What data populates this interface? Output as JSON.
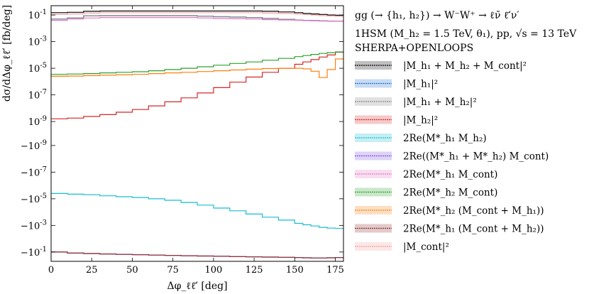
{
  "chart_data": {
    "type": "line",
    "title_lines": [
      "gg (→ {h₁, h₂}) → W⁻W⁺ → ℓν̄ ℓ̄′ν′",
      "1HSM (M_h₂ = 1.5 TeV, θ₁), pp, √s = 13 TeV",
      "SHERPA+OPENLOOPS"
    ],
    "xlabel": "Δφ_ℓℓ̄′ [deg]",
    "ylabel": "dσ/dΔφ_ℓℓ̄′ [fb/deg]",
    "xlim": [
      0,
      180
    ],
    "x_ticks": [
      "0",
      "25",
      "50",
      "75",
      "100",
      "125",
      "150",
      "175"
    ],
    "y_scale": "symlog",
    "ylim": [
      -1,
      1
    ],
    "y_ticks": [
      "10^-1",
      "10^-3",
      "10^-5",
      "10^-7",
      "10^-9",
      "−10^-9",
      "−10^-7",
      "−10^-5",
      "−10^-3",
      "−10^-1"
    ],
    "x": [
      0,
      10,
      20,
      30,
      40,
      50,
      60,
      70,
      80,
      90,
      100,
      110,
      120,
      130,
      140,
      150,
      155,
      160,
      165,
      170,
      175,
      180
    ],
    "series": [
      {
        "name": "|M_h₁ + M_h₂ + M_cont|²",
        "color": "#000000",
        "y": [
          0.15,
          0.16,
          0.19,
          0.2,
          0.2,
          0.2,
          0.2,
          0.2,
          0.2,
          0.2,
          0.2,
          0.2,
          0.2,
          0.19,
          0.17,
          0.15,
          0.13,
          0.12,
          0.11,
          0.1,
          0.095,
          0.09
        ]
      },
      {
        "name": "|M_h₁|²",
        "color": "#1f6fd0",
        "y": [
          0.05,
          0.06,
          0.085,
          0.09,
          0.09,
          0.09,
          0.09,
          0.09,
          0.09,
          0.08,
          0.075,
          0.07,
          0.065,
          0.055,
          0.048,
          0.042,
          0.04,
          0.038,
          0.036,
          0.035,
          0.034,
          0.033
        ]
      },
      {
        "name": "|M_h₁ + M_h₂|²",
        "color": "#888888",
        "y": [
          0.05,
          0.06,
          0.085,
          0.09,
          0.09,
          0.09,
          0.09,
          0.09,
          0.09,
          0.08,
          0.075,
          0.07,
          0.065,
          0.055,
          0.048,
          0.042,
          0.04,
          0.038,
          0.036,
          0.035,
          0.034,
          0.033
        ]
      },
      {
        "name": "|M_h₂|²",
        "color": "#d62728",
        "y": [
          1.6e-09,
          1.8e-09,
          2.4e-09,
          3.3e-09,
          5e-09,
          8e-09,
          1.5e-08,
          3e-08,
          6e-08,
          1.4e-07,
          3.5e-07,
          9e-07,
          2.2e-06,
          5e-06,
          1e-05,
          2e-05,
          3e-05,
          4.5e-05,
          7e-05,
          0.0001,
          0.00016,
          0.00025
        ]
      },
      {
        "name": "2Re(M*_h₁ M_h₂)",
        "color": "#17becf",
        "y": [
          -4e-06,
          -4.5e-06,
          -5e-06,
          -6e-06,
          -7e-06,
          -8e-06,
          -1e-05,
          -1.3e-05,
          -1.9e-05,
          -3e-05,
          -5e-05,
          -8e-05,
          -0.00014,
          -0.00024,
          -0.0004,
          -0.0007,
          -0.0009,
          -0.0011,
          -0.0014,
          -0.0016,
          -0.0017,
          -0.0017
        ]
      },
      {
        "name": "2Re((M*_h₁ + M*_h₂) M_cont)",
        "color": "#7d50e0",
        "y": [
          -0.1,
          -0.12,
          -0.13,
          -0.14,
          -0.15,
          -0.16,
          -0.17,
          -0.18,
          -0.19,
          -0.2,
          -0.21,
          -0.22,
          -0.23,
          -0.24,
          -0.25,
          -0.26,
          -0.27,
          -0.28,
          -0.28,
          -0.27,
          -0.26,
          -0.25
        ]
      },
      {
        "name": "2Re(M*_h₁ M_cont)",
        "color": "#e377c2",
        "y": [
          0.04,
          0.05,
          0.06,
          0.065,
          0.065,
          0.065,
          0.065,
          0.065,
          0.065,
          0.06,
          0.055,
          0.052,
          0.05,
          0.045,
          0.042,
          0.04,
          0.038,
          0.036,
          0.035,
          0.034,
          0.034,
          0.033
        ]
      },
      {
        "name": "2Re(M*_h₂ M_cont)",
        "color": "#2ca02c",
        "y": [
          3.5e-06,
          3.7e-06,
          4e-06,
          4.5e-06,
          5e-06,
          5.5e-06,
          6.5e-06,
          8e-06,
          1e-05,
          1.3e-05,
          1.7e-05,
          2.3e-05,
          3e-05,
          4e-05,
          5.5e-05,
          7.5e-05,
          9e-05,
          0.00011,
          0.00013,
          0.00015,
          0.00017,
          0.00018
        ]
      },
      {
        "name": "2Re(M*_h₂ (M_cont + M_h₁))",
        "color": "#ff7f0e",
        "y": [
          2.5e-06,
          2.6e-06,
          2.8e-06,
          3e-06,
          3.2e-06,
          3.5e-06,
          4e-06,
          4.5e-06,
          5e-06,
          5.7e-06,
          6.5e-06,
          7.5e-06,
          8.5e-06,
          9.5e-06,
          1e-05,
          1e-05,
          9e-06,
          6e-06,
          2e-06,
          8e-06,
          5e-05,
          0.0001
        ]
      },
      {
        "name": "2Re(M*_h₁ (M_cont + M_h₂))",
        "color": "#8c2a2a",
        "y": [
          -0.1,
          -0.12,
          -0.13,
          -0.14,
          -0.15,
          -0.16,
          -0.17,
          -0.18,
          -0.19,
          -0.2,
          -0.21,
          -0.22,
          -0.23,
          -0.24,
          -0.25,
          -0.26,
          -0.27,
          -0.28,
          -0.28,
          -0.27,
          -0.26,
          -0.25
        ]
      },
      {
        "name": "|M_cont|²",
        "color": "#f4a0a0",
        "y": [
          0.11,
          0.12,
          0.14,
          0.15,
          0.15,
          0.15,
          0.15,
          0.15,
          0.15,
          0.15,
          0.15,
          0.15,
          0.15,
          0.14,
          0.13,
          0.12,
          0.11,
          0.1,
          0.09,
          0.085,
          0.08,
          0.075
        ]
      }
    ]
  }
}
